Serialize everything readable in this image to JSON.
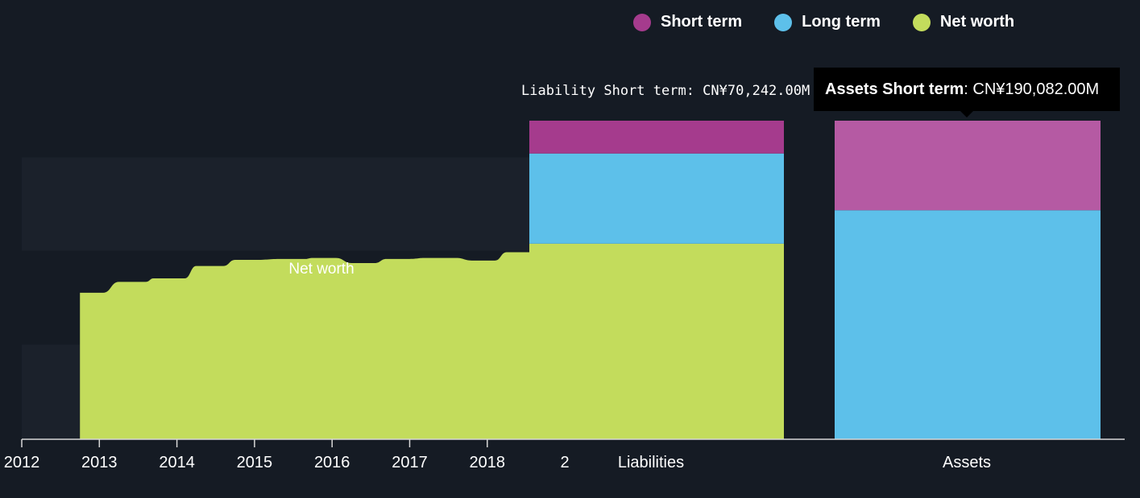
{
  "legend": {
    "items": [
      {
        "label": "Short term",
        "color": "#a53b8d"
      },
      {
        "label": "Long term",
        "color": "#5dc0ea"
      },
      {
        "label": "Net worth",
        "color": "#c3dc5c"
      }
    ]
  },
  "tooltip": {
    "bold": "Assets Short term",
    "value": ": CN¥190,082.00M"
  },
  "liability_label": {
    "series": "Liability Short term",
    "value": ": CN¥70,242.00M"
  },
  "chart_data": {
    "type": "area",
    "x_ticks": [
      "2012",
      "2013",
      "2014",
      "2015",
      "2016",
      "2017",
      "2018",
      "2"
    ],
    "x_range": [
      2012.0,
      2018.6
    ],
    "ylim": [
      0,
      100
    ],
    "net_worth": {
      "label": "Net worth",
      "color": "#c3dc5c",
      "points": [
        [
          2012.75,
          46
        ],
        [
          2013.05,
          46
        ],
        [
          2013.25,
          49.4
        ],
        [
          2013.6,
          49.4
        ],
        [
          2013.7,
          50.5
        ],
        [
          2014.1,
          50.5
        ],
        [
          2014.25,
          54.4
        ],
        [
          2014.6,
          54.4
        ],
        [
          2014.75,
          56.3
        ],
        [
          2015.0,
          56.3
        ],
        [
          2015.35,
          56.6
        ],
        [
          2015.65,
          56.6
        ],
        [
          2015.75,
          56.9
        ],
        [
          2016.05,
          56.9
        ],
        [
          2016.25,
          55.3
        ],
        [
          2016.55,
          55.3
        ],
        [
          2016.7,
          56.6
        ],
        [
          2017.0,
          56.6
        ],
        [
          2017.2,
          56.9
        ],
        [
          2017.6,
          56.9
        ],
        [
          2017.8,
          56.1
        ],
        [
          2018.1,
          56.1
        ],
        [
          2018.25,
          58.7
        ],
        [
          2018.55,
          58.7
        ]
      ]
    },
    "bars": {
      "categories": [
        "Liabilities",
        "Assets"
      ],
      "series": [
        {
          "name": "Net worth",
          "color": "#c3dc5c",
          "values": [
            61.4,
            0
          ]
        },
        {
          "name": "Long term",
          "color": "#5dc0ea",
          "values": [
            28.3,
            71.9
          ]
        },
        {
          "name": "Short term",
          "color": "#a53b8d",
          "values": [
            10.3,
            28.1
          ]
        }
      ],
      "highlight": {
        "category": "Assets",
        "series": "Short term",
        "color": "#b55aa3"
      }
    },
    "background_bands": [
      {
        "y_bottom": 59.2,
        "y_top": 88.5
      },
      {
        "y_bottom": 0,
        "y_top": 29.7
      }
    ]
  }
}
